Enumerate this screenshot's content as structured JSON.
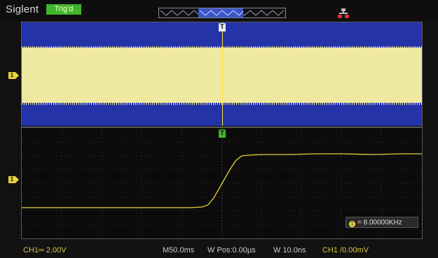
{
  "header": {
    "brand": "Siglent",
    "trigger_status": "Trig'd"
  },
  "display": {
    "channel_marker": "1",
    "trigger_marker": "T",
    "frequency_readout": "= 8.00000KHz",
    "frequency_marker": "1"
  },
  "status_bar": {
    "ch1_scale": "CH1═ 2.00V",
    "main_timebase": "M50.0ms",
    "window_position": "W Pos:0.00µs",
    "window_timebase": "W 10.0ns",
    "trigger_setting": "CH1 /0.00mV"
  },
  "icons": [
    "network-icon",
    "trigger-position-marker-icon",
    "channel1-ground-marker-icon",
    "frequency-channel-icon"
  ],
  "colors": {
    "ch1_trace": "#e6d23a",
    "zoom_band": "#2533a8",
    "trigger_badge": "#3fb52a",
    "trigger_line": "#ffe23a"
  }
}
